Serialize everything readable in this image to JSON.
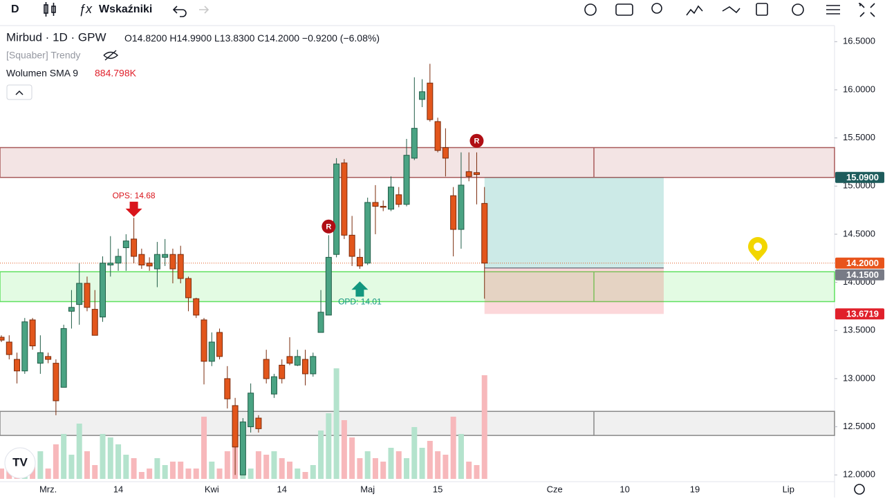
{
  "toolbar": {
    "interval": "D",
    "indicators": "Wskaźniki"
  },
  "legend": {
    "symbol": "Mirbud · 1D · GPW",
    "ohlc": [
      "O14.8200",
      "H14.9900",
      "L13.8300",
      "C14.2000"
    ],
    "change": "−0.9200 (−6.08%)",
    "indicator": "[Squaber] Trendy",
    "volume_label": "Wolumen SMA 9",
    "volume_value": "884.798K"
  },
  "chart_data": {
    "type": "candlestick",
    "open": [
      13.43,
      13.38,
      13.2,
      13.08,
      13.61,
      13.16,
      13.23,
      13.16,
      12.91,
      13.7,
      13.77,
      13.99,
      13.72,
      13.64,
      14.18,
      14.2,
      14.36,
      14.45,
      14.29,
      14.2,
      14.14,
      14.26,
      14.29,
      14.29,
      14.04,
      13.83,
      13.61,
      13.18,
      13.48,
      13.0,
      12.72,
      12.0,
      12.5,
      12.59,
      13.2,
      12.84,
      13.14,
      13.23,
      13.14,
      13.2,
      13.05,
      13.48,
      13.66,
      14.29,
      15.24,
      14.49,
      14.26,
      14.2,
      14.83,
      14.79,
      14.76,
      14.91,
      14.81,
      15.29,
      15.9,
      16.07,
      15.67,
      15.4,
      14.9,
      14.55,
      15.15,
      15.14,
      14.82
    ],
    "high": [
      13.45,
      13.45,
      13.27,
      13.63,
      13.63,
      13.45,
      13.27,
      13.2,
      13.56,
      13.92,
      14.2,
      14.06,
      13.92,
      14.27,
      14.48,
      14.35,
      14.5,
      14.67,
      14.35,
      14.26,
      14.42,
      14.45,
      14.35,
      14.38,
      14.06,
      13.84,
      13.63,
      13.48,
      13.52,
      13.13,
      12.8,
      12.59,
      12.95,
      12.62,
      13.3,
      13.05,
      13.2,
      13.43,
      13.3,
      13.3,
      13.27,
      13.92,
      14.49,
      15.29,
      15.28,
      14.69,
      14.35,
      14.88,
      15.01,
      14.85,
      15.1,
      14.99,
      15.49,
      16.13,
      16.11,
      16.27,
      15.71,
      15.6,
      14.99,
      15.35,
      15.35,
      15.35,
      14.99
    ],
    "low": [
      13.38,
      13.2,
      12.95,
      13.05,
      13.3,
      13.05,
      13.16,
      12.62,
      12.91,
      13.52,
      13.56,
      13.7,
      13.45,
      13.59,
      14.06,
      14.12,
      14.12,
      14.2,
      14.14,
      14.12,
      13.95,
      14.17,
      13.99,
      13.99,
      13.7,
      13.63,
      12.94,
      13.13,
      13.2,
      12.69,
      12.0,
      12.0,
      12.44,
      12.44,
      12.95,
      12.8,
      12.95,
      13.14,
      13.13,
      12.93,
      13.02,
      13.48,
      13.66,
      14.26,
      14.45,
      14.17,
      14.14,
      14.18,
      14.5,
      14.74,
      14.74,
      14.78,
      14.79,
      15.27,
      15.82,
      15.67,
      15.35,
      15.1,
      14.27,
      14.35,
      15.05,
      14.81,
      13.83
    ],
    "close": [
      13.4,
      13.25,
      13.08,
      13.59,
      13.34,
      13.27,
      13.2,
      12.77,
      13.52,
      13.74,
      13.99,
      13.74,
      13.45,
      14.2,
      14.2,
      14.27,
      14.43,
      14.27,
      14.18,
      14.17,
      14.29,
      14.29,
      14.14,
      14.04,
      13.84,
      13.66,
      13.18,
      13.38,
      13.23,
      12.79,
      12.29,
      12.55,
      12.85,
      12.48,
      13.0,
      13.02,
      13.0,
      13.16,
      13.23,
      13.05,
      13.23,
      13.69,
      14.26,
      15.23,
      14.49,
      14.27,
      14.17,
      14.83,
      14.79,
      14.78,
      14.99,
      14.81,
      15.32,
      15.6,
      15.98,
      15.69,
      15.37,
      15.29,
      14.55,
      15.01,
      15.1,
      15.12,
      14.2
    ],
    "volume": [
      330,
      330,
      440,
      550,
      440,
      880,
      330,
      1100,
      1430,
      770,
      1760,
      880,
      440,
      1430,
      1320,
      1100,
      770,
      660,
      220,
      330,
      660,
      440,
      550,
      550,
      330,
      330,
      1980,
      550,
      330,
      880,
      2200,
      660,
      330,
      880,
      770,
      880,
      660,
      550,
      330,
      220,
      440,
      1540,
      2090,
      3520,
      1870,
      1320,
      660,
      880,
      660,
      550,
      990,
      880,
      660,
      1650,
      990,
      1210,
      880,
      770,
      1980,
      1430,
      550,
      440,
      3300
    ],
    "xticks": [
      {
        "value": 6,
        "label": "Mrz."
      },
      {
        "value": 15,
        "label": "14"
      },
      {
        "value": 27,
        "label": "Kwi"
      },
      {
        "value": 36,
        "label": "14"
      },
      {
        "value": 47,
        "label": "Maj"
      },
      {
        "value": 56,
        "label": "15"
      },
      {
        "value": 71,
        "label": "Cze"
      },
      {
        "value": 80,
        "label": "10"
      },
      {
        "value": 89,
        "label": "19"
      },
      {
        "value": 101,
        "label": "Lip"
      }
    ],
    "ylim": [
      11.93,
      16.66
    ],
    "yticks": [
      {
        "value": 12.0,
        "label": "12.0000"
      },
      {
        "value": 12.5,
        "label": "12.5000"
      },
      {
        "value": 13.0,
        "label": "13.0000"
      },
      {
        "value": 13.5,
        "label": "13.5000"
      },
      {
        "value": 14.0,
        "label": "14.0000"
      },
      {
        "value": 14.5,
        "label": "14.5000"
      },
      {
        "value": 15.0,
        "label": "15.0000"
      },
      {
        "value": 15.5,
        "label": "15.5000"
      },
      {
        "value": 16.0,
        "label": "16.0000"
      },
      {
        "value": 16.5,
        "label": "16.5000"
      }
    ],
    "zones": [
      {
        "top": 15.4,
        "bottom": 15.09,
        "color": "#f3e4e4",
        "edge": "#a85a5a"
      },
      {
        "top": 14.11,
        "bottom": 13.8,
        "color": "#e3fbe3",
        "edge": "#5ee05e"
      },
      {
        "top": 12.66,
        "bottom": 12.41,
        "color": "#f0f0f0",
        "edge": "#888888"
      }
    ],
    "position": {
      "target": 15.09,
      "entry": 14.15,
      "stop": 13.6719,
      "start": 62,
      "end": 85
    },
    "price_labels": [
      {
        "value": 15.09,
        "label": "15.0900",
        "color": "#1e5c5c"
      },
      {
        "value": 14.2,
        "label": "14.2000",
        "color": "#e8541b"
      },
      {
        "value": 14.15,
        "label": "14.1500",
        "color": "#787b86"
      },
      {
        "value": 13.6719,
        "label": "13.6719",
        "color": "#e0202b"
      }
    ],
    "annotations": [
      {
        "label": "OPS: 14.68",
        "index": 17,
        "value": 14.68,
        "direction": "down",
        "color": "#d9141b"
      },
      {
        "label": "OPD: 14.01",
        "index": 46,
        "value": 14.01,
        "direction": "up",
        "color": "#13977f"
      }
    ],
    "markers": [
      {
        "label": "R",
        "index": 42,
        "value": 14.58
      },
      {
        "label": "R",
        "index": 61,
        "value": 15.47
      }
    ],
    "up_color": "#4aa383",
    "down_color": "#e2561c",
    "volume_up_color": "#b4e3cd",
    "volume_down_color": "#f7b8bb"
  }
}
